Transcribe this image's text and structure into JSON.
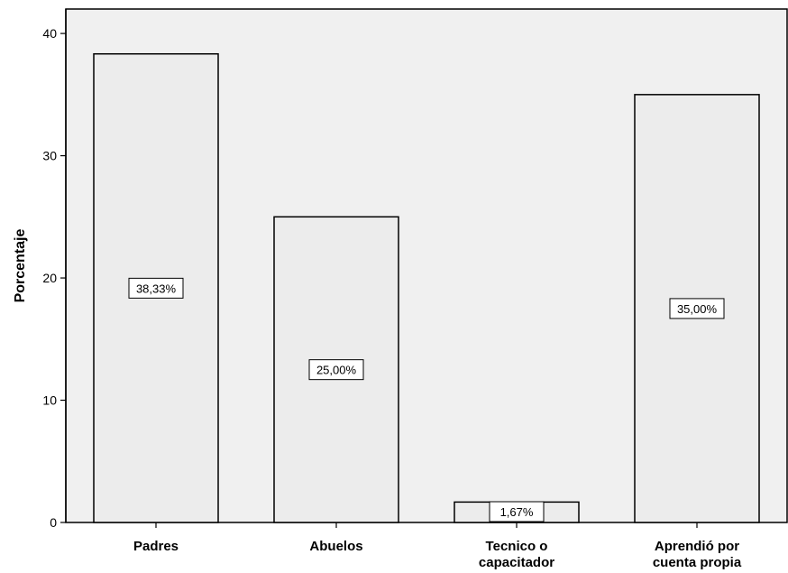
{
  "chart_data": {
    "type": "bar",
    "categories": [
      "Padres",
      "Abuelos",
      "Tecnico o capacitador",
      "Aprendió por cuenta propia"
    ],
    "category_lines": [
      [
        "Padres"
      ],
      [
        "Abuelos"
      ],
      [
        "Tecnico o",
        "capacitador"
      ],
      [
        "Aprendió por",
        "cuenta propia"
      ]
    ],
    "values": [
      38.33,
      25.0,
      1.67,
      35.0
    ],
    "data_labels": [
      "38,33%",
      "25,00%",
      "1,67%",
      "35,00%"
    ],
    "xlabel": "",
    "ylabel": "Porcentaje",
    "ylim": [
      0,
      42
    ],
    "yticks": [
      0,
      10,
      20,
      30,
      40
    ],
    "grid": false,
    "colors": {
      "plot_background": "#f0f0f0",
      "bar_fill": "#ececec",
      "bar_stroke": "#000000",
      "label_box_fill": "#ffffff"
    }
  }
}
